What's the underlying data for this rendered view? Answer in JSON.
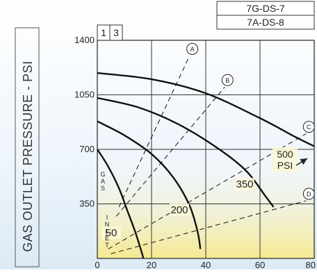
{
  "chart_data": {
    "type": "line",
    "ylabel": "GAS OUTLET PRESSURE - PSI",
    "xlabel": "",
    "xlim": [
      0,
      80
    ],
    "ylim": [
      0,
      1400
    ],
    "xticks": [
      0,
      20,
      40,
      60,
      80
    ],
    "yticks": [
      350,
      700,
      1050,
      1400
    ],
    "grid": true,
    "header_boxes": [
      "1",
      "3"
    ],
    "model_labels": [
      "7G-DS-7",
      "7A-DS-8"
    ],
    "colors": {
      "curve": "#111111",
      "grid": "#333333",
      "shade_top": "#ffffff",
      "shade_bottom": "#f5e98f",
      "label": "#222222"
    },
    "gas_inlet_label": "GAS INLET",
    "series": [
      {
        "name": "50",
        "label": "50",
        "style": "solid",
        "points": [
          [
            0,
            700
          ],
          [
            4,
            590
          ],
          [
            8,
            450
          ],
          [
            11,
            310
          ],
          [
            14,
            170
          ],
          [
            16,
            60
          ],
          [
            17,
            0
          ]
        ]
      },
      {
        "name": "200",
        "label": "200",
        "style": "solid",
        "points": [
          [
            0,
            880
          ],
          [
            10,
            790
          ],
          [
            20,
            670
          ],
          [
            28,
            520
          ],
          [
            34,
            340
          ],
          [
            37,
            170
          ],
          [
            38,
            60
          ]
        ]
      },
      {
        "name": "350",
        "label": "350",
        "style": "solid",
        "points": [
          [
            0,
            1030
          ],
          [
            15,
            970
          ],
          [
            30,
            860
          ],
          [
            45,
            700
          ],
          [
            55,
            560
          ],
          [
            62,
            400
          ],
          [
            65,
            330
          ]
        ]
      },
      {
        "name": "500 PSI",
        "label": "500\nPSI",
        "style": "solid",
        "points": [
          [
            0,
            1190
          ],
          [
            20,
            1150
          ],
          [
            40,
            1060
          ],
          [
            60,
            900
          ],
          [
            73,
            780
          ],
          [
            80,
            720
          ]
        ]
      },
      {
        "name": "A",
        "label": "A",
        "style": "dashed",
        "points": [
          [
            8,
            330
          ],
          [
            34,
            1300
          ]
        ]
      },
      {
        "name": "B",
        "label": "B",
        "style": "dashed",
        "points": [
          [
            7,
            270
          ],
          [
            47,
            1100
          ]
        ]
      },
      {
        "name": "C",
        "label": "C",
        "style": "dashed",
        "points": [
          [
            4,
            60
          ],
          [
            77,
            800
          ]
        ]
      },
      {
        "name": "D",
        "label": "D",
        "style": "dashed",
        "points": [
          [
            5,
            30
          ],
          [
            77,
            370
          ]
        ]
      }
    ]
  }
}
